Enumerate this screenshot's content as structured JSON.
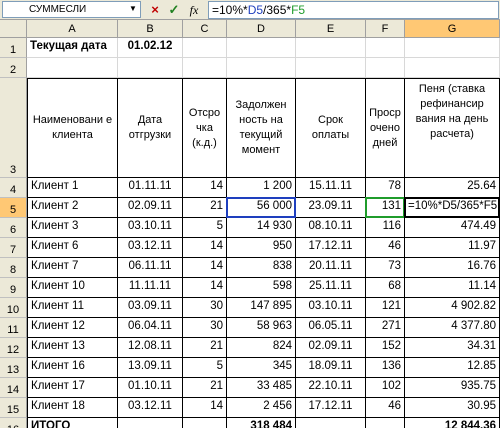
{
  "formula_bar": {
    "name_box": "СУММЕСЛИ",
    "cancel_icon": "×",
    "enter_icon": "✓",
    "insert_function_icon": "fx",
    "formula_prefix": "=10%*",
    "formula_ref1": "D5",
    "formula_mid": "/365*",
    "formula_ref2": "F5"
  },
  "columns": [
    "A",
    "B",
    "C",
    "D",
    "E",
    "F",
    "G"
  ],
  "rows_header": [
    "1",
    "2",
    "3",
    "4",
    "5",
    "6",
    "7",
    "8",
    "9",
    "10",
    "11",
    "12",
    "13",
    "14",
    "15",
    "16"
  ],
  "sheet": {
    "r1": {
      "a": "Текущая дата",
      "b": "01.02.12"
    },
    "headers": {
      "a": "Наименовани е клиента",
      "b": "Дата отгрузки",
      "c": "Отсро чка (к.д.)",
      "d": "Задолжен ность на текущий момент",
      "e": "Срок оплаты",
      "f": "Проср очено дней",
      "g": "Пеня (ставка рефинансир вания на день расчета)"
    },
    "data": [
      {
        "a": "Клиент 1",
        "b": "01.11.11",
        "c": "14",
        "d": "1 200",
        "e": "15.11.11",
        "f": "78",
        "g": "25.64"
      },
      {
        "a": "Клиент 2",
        "b": "02.09.11",
        "c": "21",
        "d": "56 000",
        "e": "23.09.11",
        "f": "131",
        "g": "=10%*D5/365*F5"
      },
      {
        "a": "Клиент 3",
        "b": "03.10.11",
        "c": "5",
        "d": "14 930",
        "e": "08.10.11",
        "f": "116",
        "g": "474.49"
      },
      {
        "a": "Клиент 6",
        "b": "03.12.11",
        "c": "14",
        "d": "950",
        "e": "17.12.11",
        "f": "46",
        "g": "11.97"
      },
      {
        "a": "Клиент 7",
        "b": "06.11.11",
        "c": "14",
        "d": "838",
        "e": "20.11.11",
        "f": "73",
        "g": "16.76"
      },
      {
        "a": "Клиент 10",
        "b": "11.11.11",
        "c": "14",
        "d": "598",
        "e": "25.11.11",
        "f": "68",
        "g": "11.14"
      },
      {
        "a": "Клиент 11",
        "b": "03.09.11",
        "c": "30",
        "d": "147 895",
        "e": "03.10.11",
        "f": "121",
        "g": "4 902.82"
      },
      {
        "a": "Клиент 12",
        "b": "06.04.11",
        "c": "30",
        "d": "58 963",
        "e": "06.05.11",
        "f": "271",
        "g": "4 377.80"
      },
      {
        "a": "Клиент 13",
        "b": "12.08.11",
        "c": "21",
        "d": "824",
        "e": "02.09.11",
        "f": "152",
        "g": "34.31"
      },
      {
        "a": "Клиент 16",
        "b": "13.09.11",
        "c": "5",
        "d": "345",
        "e": "18.09.11",
        "f": "136",
        "g": "12.85"
      },
      {
        "a": "Клиент 17",
        "b": "01.10.11",
        "c": "21",
        "d": "33 485",
        "e": "22.10.11",
        "f": "102",
        "g": "935.75"
      },
      {
        "a": "Клиент 18",
        "b": "03.12.11",
        "c": "14",
        "d": "2 456",
        "e": "17.12.11",
        "f": "46",
        "g": "30.95"
      }
    ],
    "total": {
      "a": "ИТОГО",
      "d": "318 484",
      "g": "12 844.36"
    }
  },
  "colors": {
    "header_bg": "#ece9d8",
    "active_header": "#ffc874",
    "ref_d5": "#1e3fbe",
    "ref_f5": "#1f9c2b"
  }
}
